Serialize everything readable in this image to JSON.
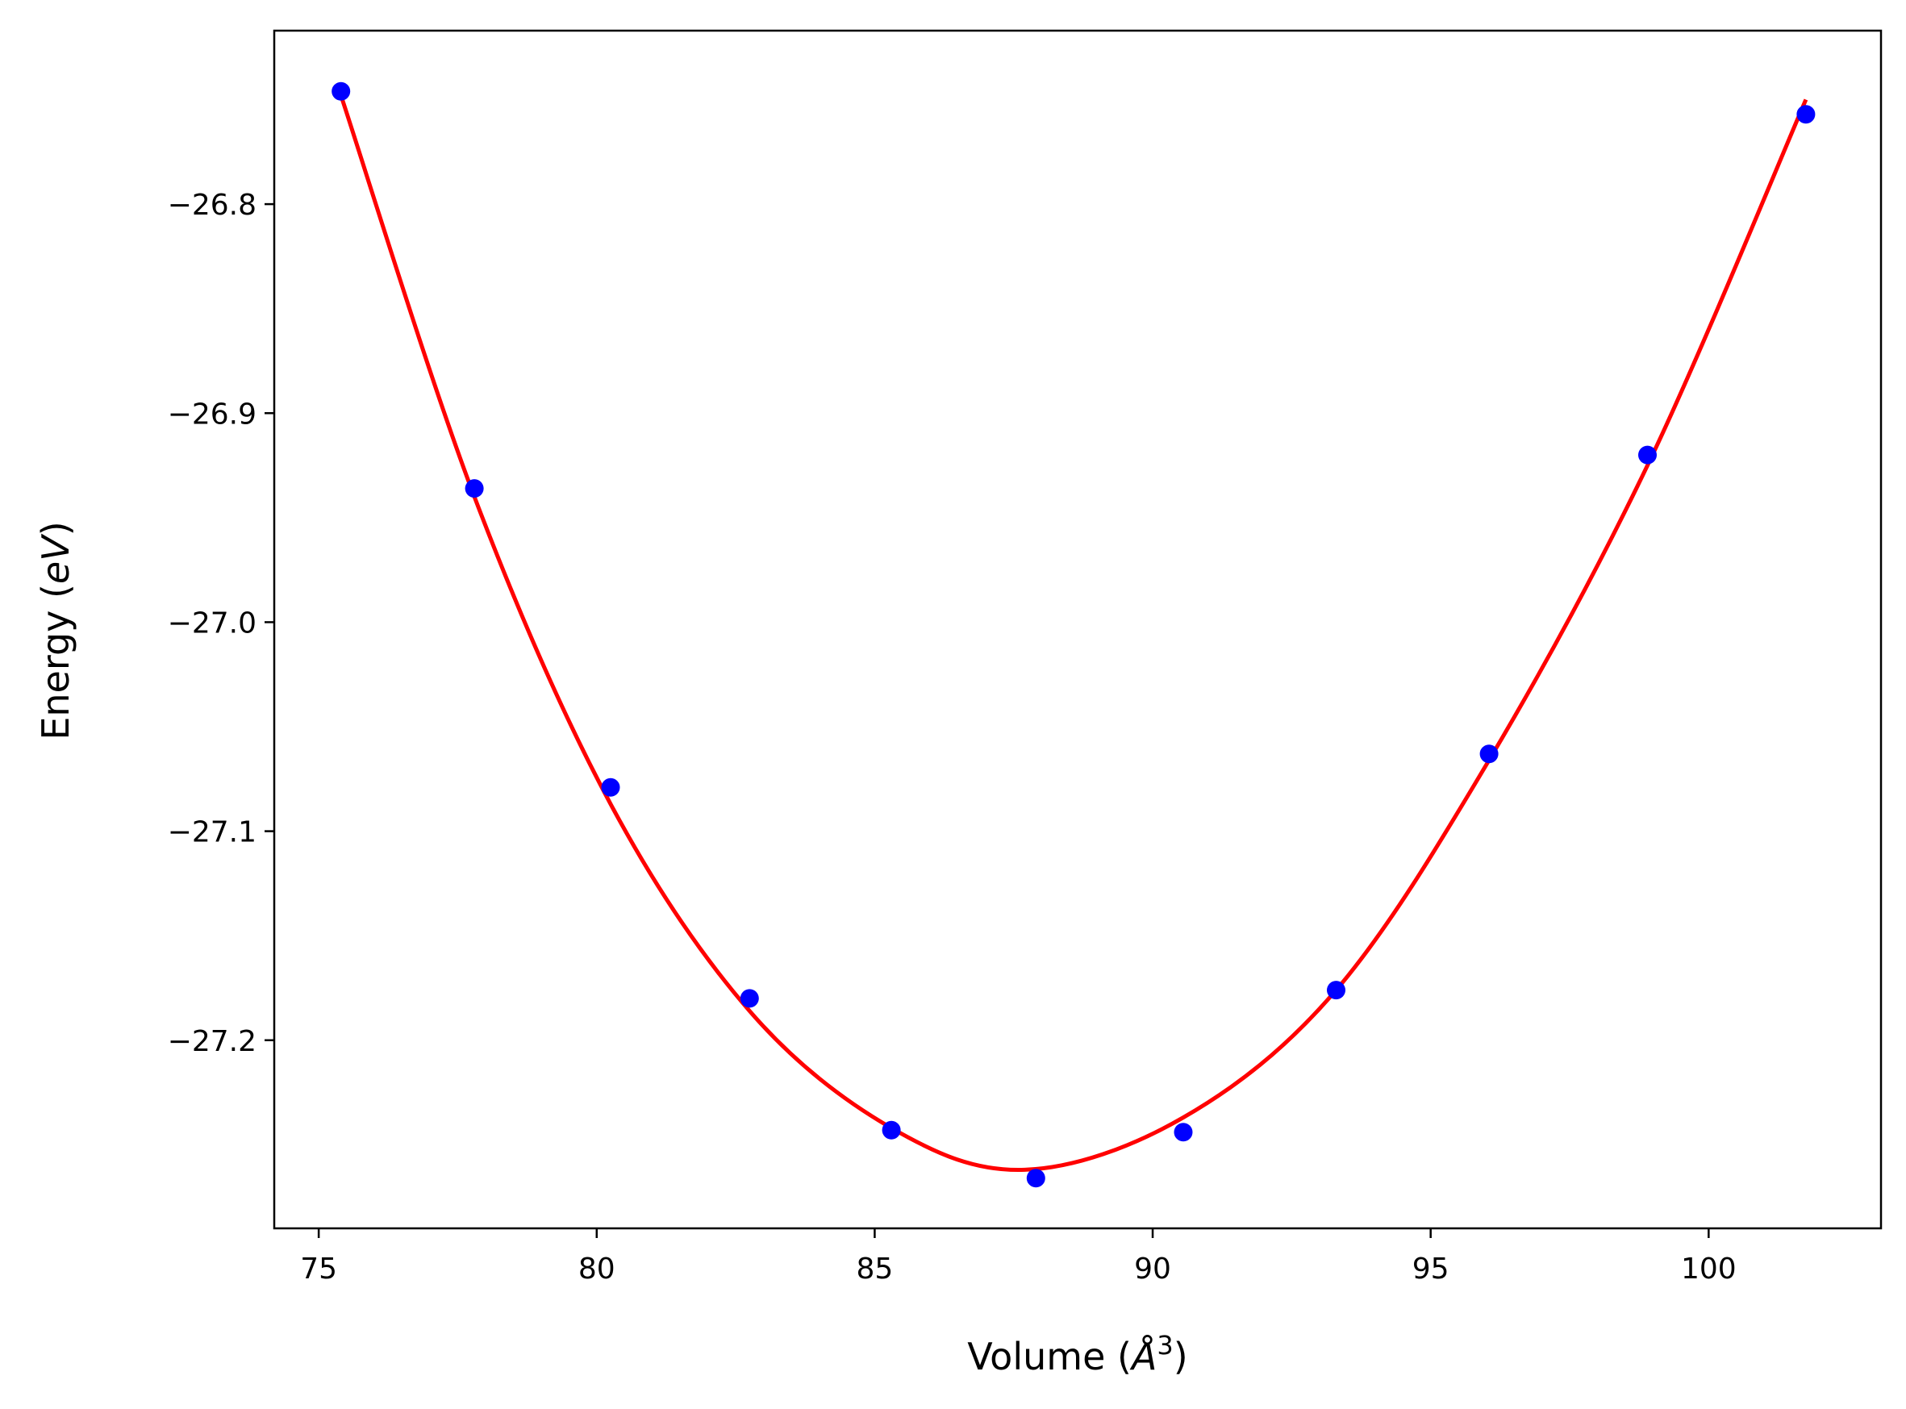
{
  "chart_data": {
    "type": "scatter",
    "title": "",
    "xlabel": {
      "prefix": "Volume (",
      "symbol": "Å",
      "superscript": "3",
      "suffix": ")"
    },
    "ylabel": {
      "prefix": "Energy (",
      "italic": "eV",
      "suffix": ")"
    },
    "xlim": [
      74.2,
      103.1
    ],
    "ylim": [
      -27.29,
      -26.717
    ],
    "x_ticks": [
      75,
      80,
      85,
      90,
      95,
      100
    ],
    "x_tick_labels": [
      "75",
      "80",
      "85",
      "90",
      "95",
      "100"
    ],
    "y_ticks": [
      -26.8,
      -26.9,
      -27.0,
      -27.1,
      -27.2
    ],
    "y_tick_labels": [
      "−26.8",
      "−26.9",
      "−27.0",
      "−27.1",
      "−27.2"
    ],
    "grid": false,
    "legend": "none",
    "series": [
      {
        "type": "scatter",
        "color": "#0000ff",
        "x": [
          75.4,
          77.8,
          80.25,
          82.75,
          85.3,
          87.9,
          90.55,
          93.3,
          96.05,
          98.9,
          101.75
        ],
        "y": [
          -26.746,
          -26.936,
          -27.079,
          -27.18,
          -27.243,
          -27.266,
          -27.244,
          -27.176,
          -27.063,
          -26.92,
          -26.757
        ]
      },
      {
        "type": "line",
        "color": "#ff0000",
        "x": [
          75.4,
          77.8,
          80.25,
          82.75,
          85.3,
          87.7,
          90.55,
          93.3,
          96.05,
          98.9,
          101.75
        ],
        "y": [
          -26.748,
          -26.94,
          -27.087,
          -27.186,
          -27.242,
          -27.262,
          -27.237,
          -27.176,
          -27.066,
          -26.925,
          -26.75
        ]
      }
    ]
  }
}
